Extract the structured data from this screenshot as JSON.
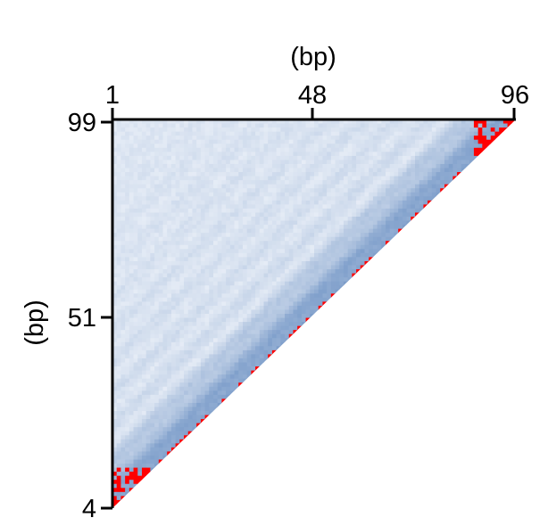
{
  "chart_data": {
    "type": "heatmap",
    "title": "",
    "xlabel": "(bp)",
    "ylabel": "(bp)",
    "x_ticks": [
      "1",
      "48",
      "96"
    ],
    "y_ticks": [
      "99",
      "51",
      "4"
    ],
    "x_tick_values": [
      1,
      48,
      96
    ],
    "y_tick_values": [
      99,
      51,
      4
    ],
    "xlim": [
      1,
      96
    ],
    "ylim": [
      4,
      99
    ],
    "grid": false,
    "legend": "none",
    "shape": "upper-left triangle",
    "colors": {
      "low": "#f4f7fc",
      "high": "#3f6fb0",
      "saturated": "#ff0000",
      "axis": "#000000"
    }
  }
}
